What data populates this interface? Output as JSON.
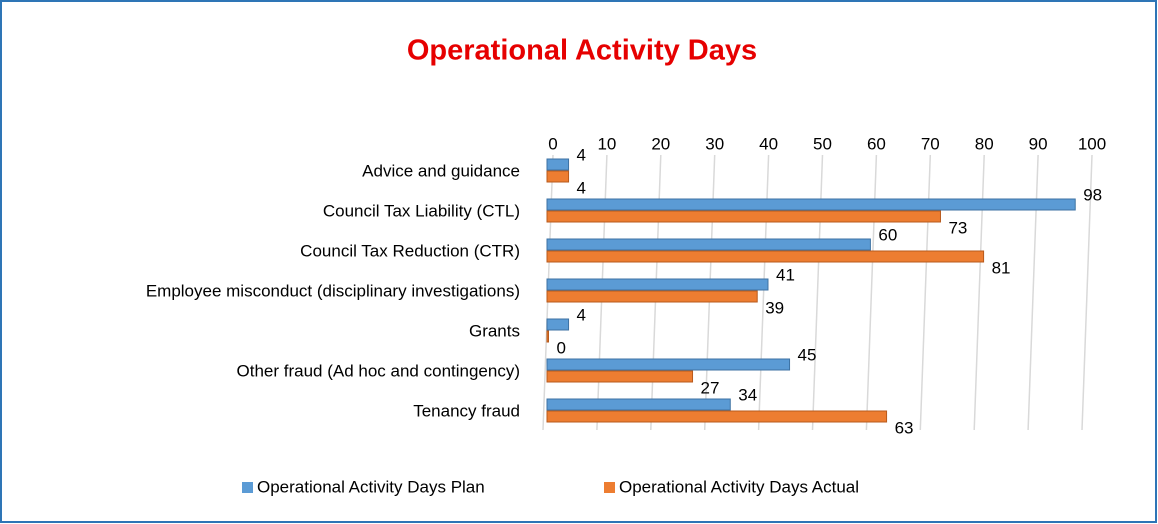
{
  "chart_data": {
    "type": "bar",
    "orientation": "horizontal",
    "title": "Operational Activity Days",
    "categories": [
      "Advice and guidance",
      "Council Tax Liability (CTL)",
      "Council Tax Reduction (CTR)",
      "Employee misconduct (disciplinary investigations)",
      "Grants",
      "Other fraud (Ad hoc and contingency)",
      "Tenancy fraud"
    ],
    "series": [
      {
        "name": "Operational Activity Days Plan",
        "color": "#5b9bd5",
        "values": [
          4,
          98,
          60,
          41,
          4,
          45,
          34
        ]
      },
      {
        "name": "Operational Activity Days Actual",
        "color": "#ed7d31",
        "values": [
          4,
          73,
          81,
          39,
          0,
          27,
          63
        ]
      }
    ],
    "xlim": [
      0,
      100
    ],
    "xticks": [
      0,
      10,
      20,
      30,
      40,
      50,
      60,
      70,
      80,
      90,
      100
    ],
    "grid": true,
    "legend": "bottom"
  }
}
